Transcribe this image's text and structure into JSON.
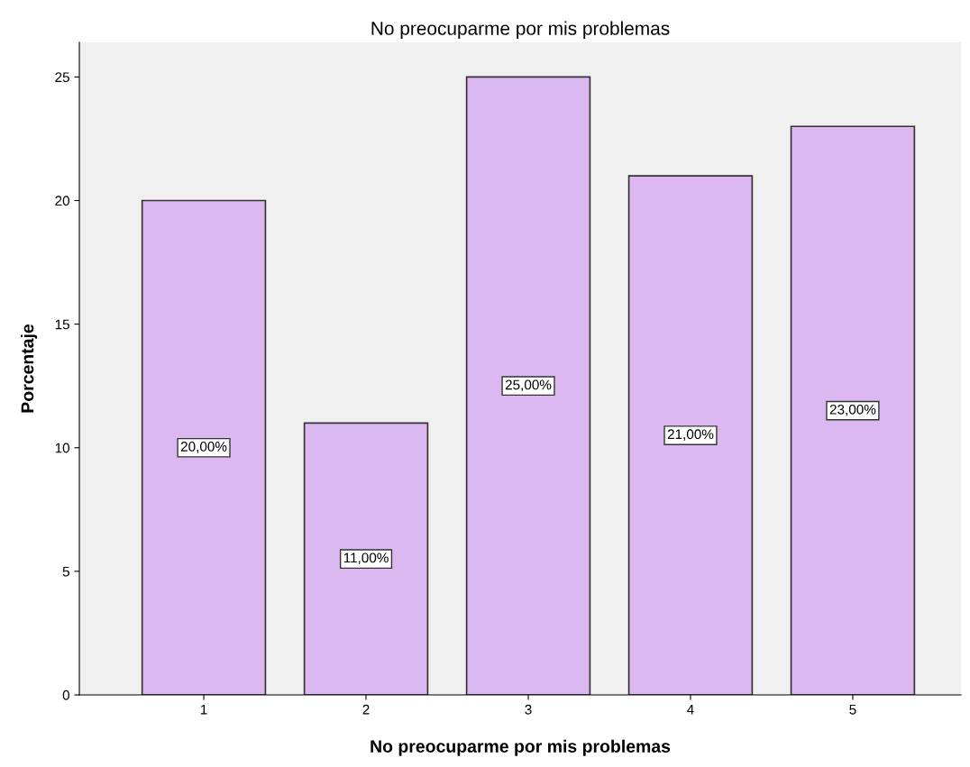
{
  "chart_data": {
    "type": "bar",
    "title": "No preocuparme por mis problemas",
    "xlabel": "No preocuparme por mis problemas",
    "ylabel": "Porcentaje",
    "categories": [
      "1",
      "2",
      "3",
      "4",
      "5"
    ],
    "values": [
      20,
      11,
      25,
      21,
      23
    ],
    "value_labels": [
      "20,00%",
      "11,00%",
      "25,00%",
      "21,00%",
      "23,00%"
    ],
    "color": "#dcb8f0",
    "ylim": [
      0,
      26.4
    ],
    "yticks": [
      0,
      5,
      10,
      15,
      20,
      25
    ],
    "grid": false
  }
}
